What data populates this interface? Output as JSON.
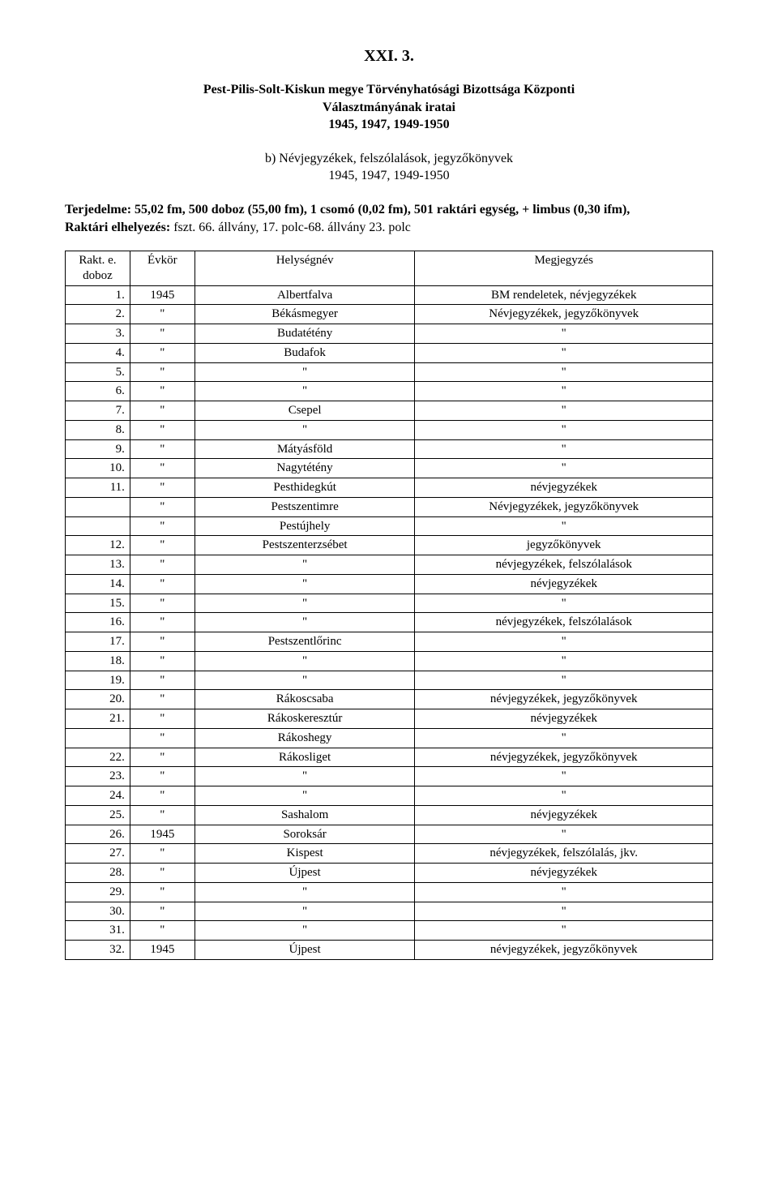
{
  "header": {
    "code": "XXI. 3.",
    "title_line1": "Pest-Pilis-Solt-Kiskun megye Törvényhatósági Bizottsága Központi",
    "title_line2": "Választmányának iratai",
    "title_line3": "1945, 1947, 1949-1950",
    "sub_line1": "b) Névjegyzékek, felszólalások, jegyzőkönyvek",
    "sub_line2": "1945, 1947, 1949-1950",
    "desc_line1_bold": "Terjedelme: 55,02 fm, 500 doboz (55,00 fm), 1 csomó (0,02 fm), 501 raktári egység, + limbus (0,30 ifm),",
    "desc_line2_label": "Raktári elhelyezés:",
    "desc_line2_rest": " fszt. 66. állvány, 17. polc-68. állvány 23. polc"
  },
  "table": {
    "head": {
      "c1a": "Rakt. e.",
      "c1b": "doboz",
      "c2": "Évkör",
      "c3": "Helységnév",
      "c4": "Megjegyzés"
    },
    "rows": [
      {
        "n": "1.",
        "ev": "1945",
        "hely": "Albertfalva",
        "meg": "BM rendeletek, névjegyzékek"
      },
      {
        "n": "2.",
        "ev": "\"",
        "hely": "Békásmegyer",
        "meg": "Névjegyzékek, jegyzőkönyvek"
      },
      {
        "n": "3.",
        "ev": "\"",
        "hely": "Budatétény",
        "meg": "\""
      },
      {
        "n": "4.",
        "ev": "\"",
        "hely": "Budafok",
        "meg": "\""
      },
      {
        "n": "5.",
        "ev": "\"",
        "hely": "\"",
        "meg": "\""
      },
      {
        "n": "6.",
        "ev": "\"",
        "hely": "\"",
        "meg": "\""
      },
      {
        "n": "7.",
        "ev": "\"",
        "hely": "Csepel",
        "meg": "\""
      },
      {
        "n": "8.",
        "ev": "\"",
        "hely": "\"",
        "meg": "\""
      },
      {
        "n": "9.",
        "ev": "\"",
        "hely": "Mátyásföld",
        "meg": "\""
      },
      {
        "n": "10.",
        "ev": "\"",
        "hely": "Nagytétény",
        "meg": "\""
      },
      {
        "n": "11.",
        "ev": "\"",
        "hely": "Pesthidegkút",
        "meg": "névjegyzékek"
      },
      {
        "n": "",
        "ev": "\"",
        "hely": "Pestszentimre",
        "meg": "Névjegyzékek, jegyzőkönyvek"
      },
      {
        "n": "",
        "ev": "\"",
        "hely": "Pestújhely",
        "meg": "\""
      },
      {
        "n": "12.",
        "ev": "\"",
        "hely": "Pestszenterzsébet",
        "meg": "jegyzőkönyvek"
      },
      {
        "n": "13.",
        "ev": "\"",
        "hely": "\"",
        "meg": "névjegyzékek, felszólalások"
      },
      {
        "n": "14.",
        "ev": "\"",
        "hely": "\"",
        "meg": "névjegyzékek"
      },
      {
        "n": "15.",
        "ev": "\"",
        "hely": "\"",
        "meg": "\""
      },
      {
        "n": "16.",
        "ev": "\"",
        "hely": "\"",
        "meg": "névjegyzékek, felszólalások"
      },
      {
        "n": "17.",
        "ev": "\"",
        "hely": "Pestszentlőrinc",
        "meg": "\""
      },
      {
        "n": "18.",
        "ev": "\"",
        "hely": "\"",
        "meg": "\""
      },
      {
        "n": "19.",
        "ev": "\"",
        "hely": "\"",
        "meg": "\""
      },
      {
        "n": "20.",
        "ev": "\"",
        "hely": "Rákoscsaba",
        "meg": "névjegyzékek, jegyzőkönyvek"
      },
      {
        "n": "21.",
        "ev": "\"",
        "hely": "Rákoskeresztúr",
        "meg": "névjegyzékek"
      },
      {
        "n": "",
        "ev": "\"",
        "hely": "Rákoshegy",
        "meg": "\""
      },
      {
        "n": "22.",
        "ev": "\"",
        "hely": "Rákosliget",
        "meg": "névjegyzékek, jegyzőkönyvek"
      },
      {
        "n": "23.",
        "ev": "\"",
        "hely": "\"",
        "meg": "\""
      },
      {
        "n": "24.",
        "ev": "\"",
        "hely": "\"",
        "meg": "\""
      },
      {
        "n": "25.",
        "ev": "\"",
        "hely": "Sashalom",
        "meg": "névjegyzékek"
      },
      {
        "n": "26.",
        "ev": "1945",
        "hely": "Soroksár",
        "meg": "\""
      },
      {
        "n": "27.",
        "ev": "\"",
        "hely": "Kispest",
        "meg": "névjegyzékek, felszólalás, jkv."
      },
      {
        "n": "28.",
        "ev": "\"",
        "hely": "Újpest",
        "meg": "névjegyzékek"
      },
      {
        "n": "29.",
        "ev": "\"",
        "hely": "\"",
        "meg": "\""
      },
      {
        "n": "30.",
        "ev": "\"",
        "hely": "\"",
        "meg": "\""
      },
      {
        "n": "31.",
        "ev": "\"",
        "hely": "\"",
        "meg": "\""
      },
      {
        "n": "32.",
        "ev": "1945",
        "hely": "Újpest",
        "meg": "névjegyzékek, jegyzőkönyvek"
      }
    ]
  }
}
